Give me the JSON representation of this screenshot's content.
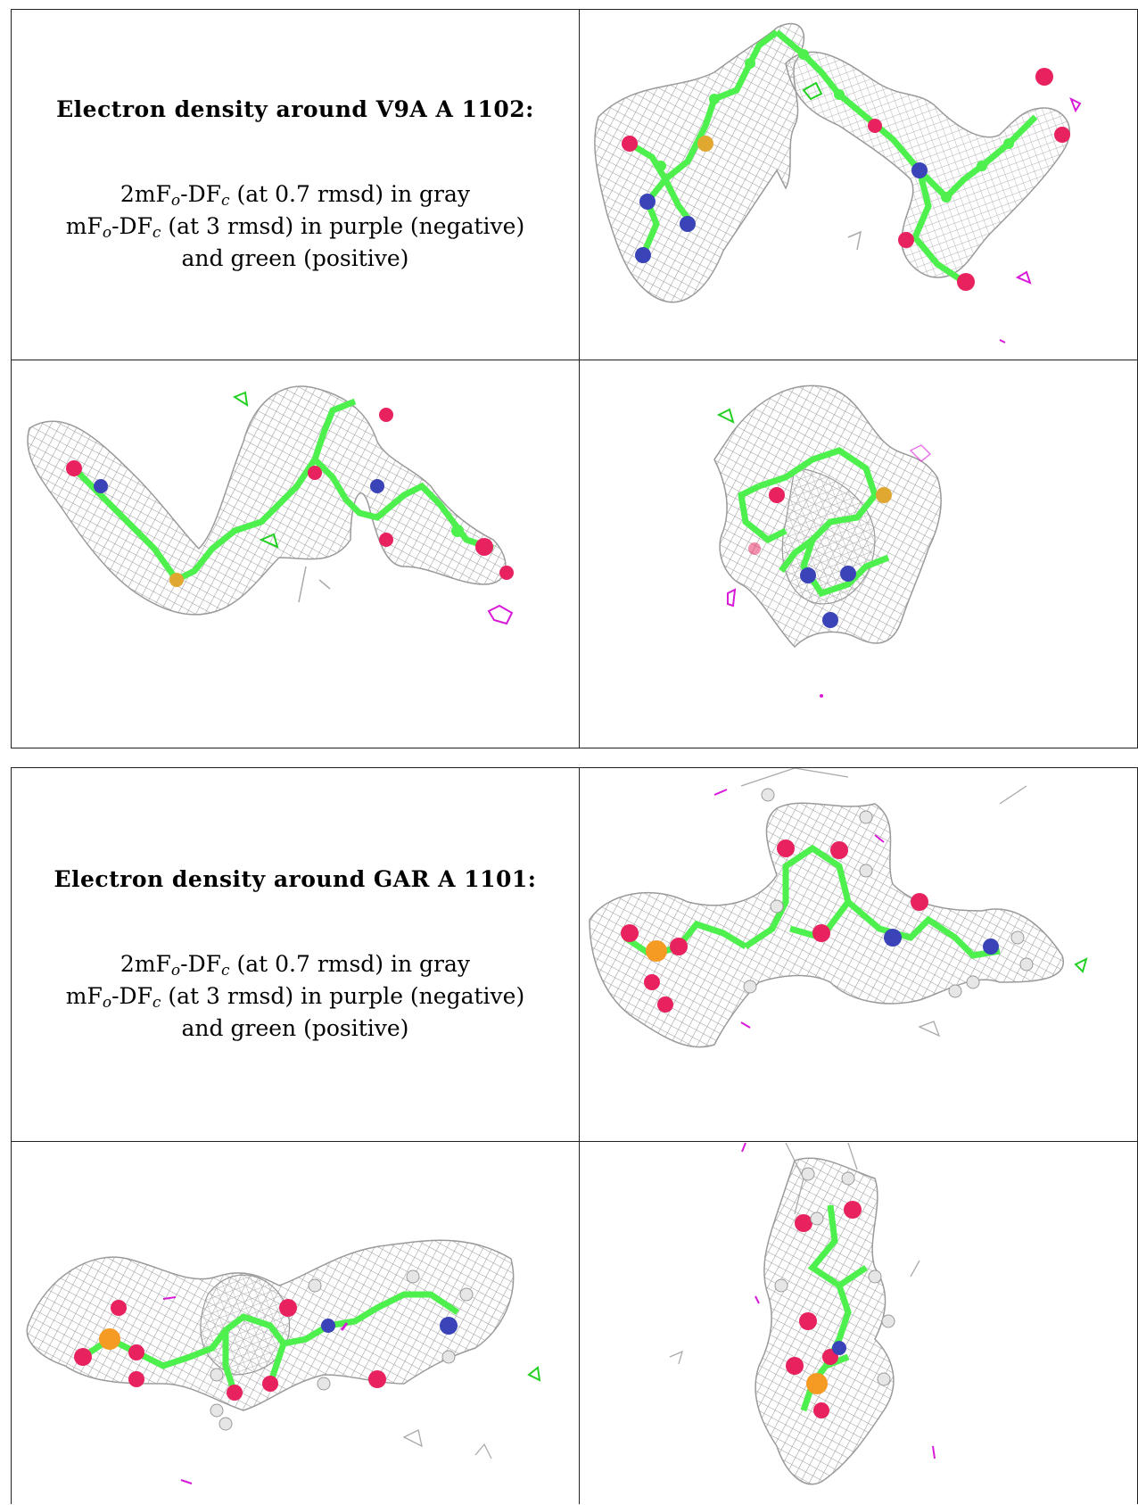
{
  "colors": {
    "mesh": "#9a9a9a",
    "carbon": "#4ef04e",
    "oxygen": "#e8225e",
    "nitrogen": "#3a44b8",
    "sulfur": "#e0a830",
    "phosphorus": "#f59a23",
    "hydrogen": "#e6e6e6",
    "negative_density": "#d81ad8",
    "positive_density": "#22d022"
  },
  "blocks": [
    {
      "title": "Electron density around V9A A 1102:",
      "map1": {
        "name": "2mF",
        "sub1": "o",
        "mid": "-DF",
        "sub2": "c",
        "rest": " (at 0.7 rmsd) in gray"
      },
      "map2": {
        "name": "mF",
        "sub1": "o",
        "mid": "-DF",
        "sub2": "c",
        "rest": " (at 3 rmsd) in purple (negative)"
      },
      "map2_cont": "and green (positive)",
      "views": [
        "density-view-1",
        "density-view-2",
        "density-view-3"
      ]
    },
    {
      "title": "Electron density around GAR A 1101:",
      "map1": {
        "name": "2mF",
        "sub1": "o",
        "mid": "-DF",
        "sub2": "c",
        "rest": " (at 0.7 rmsd) in gray"
      },
      "map2": {
        "name": "mF",
        "sub1": "o",
        "mid": "-DF",
        "sub2": "c",
        "rest": " (at 3 rmsd) in purple (negative)"
      },
      "map2_cont": "and green (positive)",
      "views": [
        "density-view-1",
        "density-view-2",
        "density-view-3"
      ]
    }
  ]
}
